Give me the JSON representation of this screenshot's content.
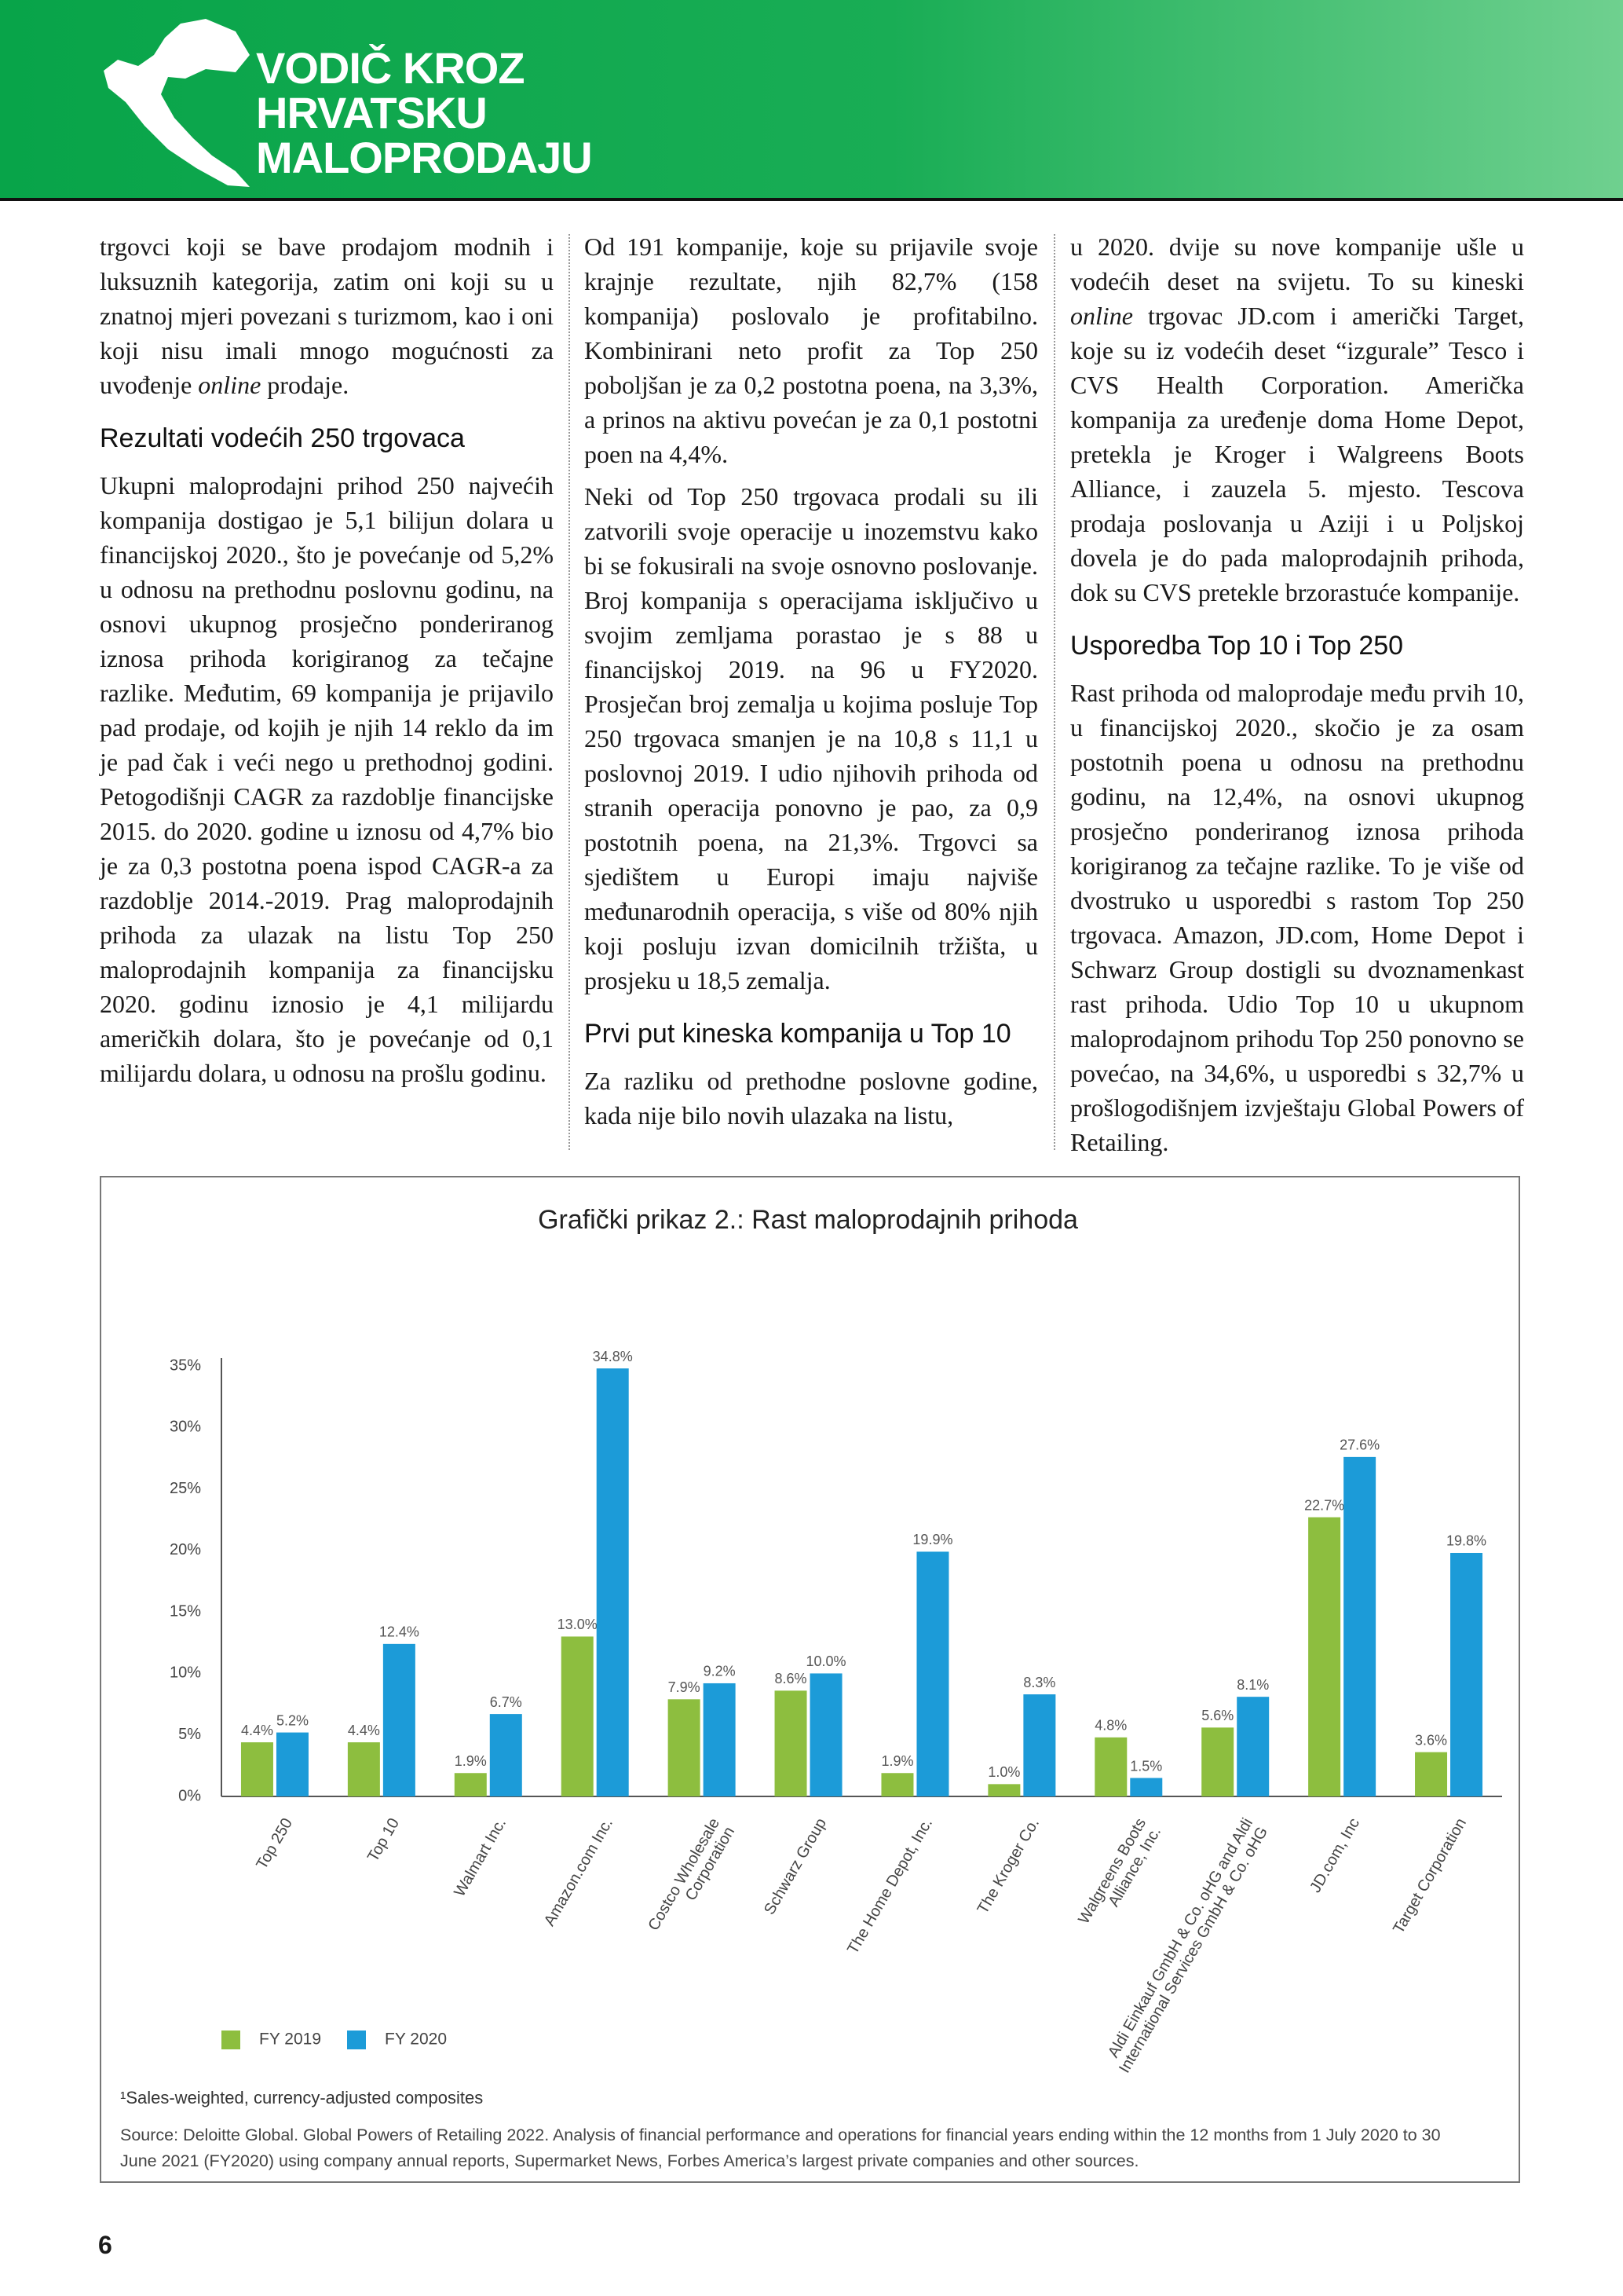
{
  "header": {
    "title": [
      "VODIČ KROZ",
      "HRVATSKU",
      "MALOPRODAJU"
    ]
  },
  "columns": [
    [
      {
        "parts": [
          "trgovci koji se bave prodajom modnih i luksuznih kategorija, zatim oni koji su u znatnoj mjeri povezani s turizmom, kao i oni koji nisu imali mnogo mogućnosti za uvođenje ",
          "online",
          " prodaje."
        ],
        "italic": [
          1
        ]
      },
      {
        "heading": "Rezultati vodećih 250 trgovaca"
      },
      {
        "parts": [
          "Ukupni maloprodajni prihod 250 najvećih kompanija dostigao je 5,1 bilijun dolara u financijskoj 2020., što je povećanje od 5,2% u odnosu na prethodnu poslovnu godinu, na osnovi ukupnog prosječno ponderiranog iznosa prihoda korigiranog za tečajne razlike. Međutim, 69 kompanija je prijavilo pad prodaje, od kojih je njih 14 reklo da im je pad čak i veći nego u prethodnoj godini. Petogodišnji CAGR za razdoblje financijske 2015. do 2020. godine u iznosu od 4,7% bio je za 0,3 postotna poena ispod CAGR-a za razdoblje 2014.-2019. Prag maloprodajnih prihoda za ulazak na listu Top 250 maloprodajnih kompanija za financijsku 2020. godinu iznosio je 4,1 milijardu američkih dolara, što je povećanje od 0,1 milijardu dolara, u odnosu na prošlu godinu."
        ]
      }
    ],
    [
      {
        "parts": [
          "Od 191 kompanije, koje su prijavile svoje krajnje rezultate, njih 82,7% (158 kompanija) poslovalo je profitabilno. Kombinirani neto profit za Top 250 poboljšan je za 0,2 postotna poena, na 3,3%, a prinos na aktivu povećan je za 0,1 postotni poen na 4,4%."
        ]
      },
      {
        "parts": [
          "Neki od Top 250 trgovaca prodali su ili zatvorili svoje operacije u inozemstvu kako bi se fokusirali na svoje osnovno poslovanje. Broj kompanija s operacijama isključivo u svojim zemljama porastao je s 88 u financijskoj 2019. na 96 u FY2020. Prosječan broj zemalja u kojima posluje Top 250 trgovaca smanjen je na 10,8 s 11,1 u poslovnoj 2019. I udio njihovih prihoda od stranih operacija ponovno je pao, za 0,9 postotnih poena, na 21,3%. Trgovci sa sjedištem u Europi imaju najviše međunarodnih operacija, s više od 80% njih koji posluju izvan domicilnih tržišta, u prosjeku u 18,5 zemalja."
        ]
      },
      {
        "heading": "Prvi put kineska kompanija u Top 10"
      },
      {
        "parts": [
          "Za razliku od prethodne poslovne godine, kada nije bilo novih ulazaka na listu,"
        ]
      }
    ],
    [
      {
        "parts": [
          "u 2020. dvije su nove kompanije ušle u vodećih deset na svijetu. To su kineski ",
          "online",
          " trgovac JD.com i američki Target, koje su iz vodećih deset “izgurale” Tesco i CVS Health Corporation. Američka kompanija za uređenje doma Home Depot, pretekla je Kroger i Walgreens Boots Alliance, i zauzela 5. mjesto. Tescova prodaja poslovanja u Aziji i u Poljskoj dovela je do pada maloprodajnih prihoda, dok su CVS pretekle brzorastuće kompanije."
        ],
        "italic": [
          1
        ]
      },
      {
        "heading": "Usporedba Top 10 i Top 250"
      },
      {
        "parts": [
          "Rast prihoda od maloprodaje među prvih 10, u financijskoj 2020., skočio je za osam postotnih poena u odnosu na prethodnu godinu, na 12,4%, na osnovi ukupnog prosječno ponderiranog iznosa prihoda korigiranog za tečajne razlike. To je više od dvostruko u usporedbi s rastom Top 250 trgovaca. Amazon, JD.com, Home Depot i Schwarz Group dostigli su dvoznamenkast rast prihoda. Udio Top 10 u ukupnom maloprodajnom prihodu Top 250 ponovno se povećao, na 34,6%, u usporedbi s 32,7% u prošlogodišnjem izvještaju Global Powers of Retailing."
        ]
      }
    ]
  ],
  "chart_data": {
    "type": "bar",
    "title": "Grafički prikaz 2.: Rast maloprodajnih prihoda",
    "categories": [
      "Top 250",
      "Top 10",
      "Walmart Inc.",
      "Amazon.com Inc.",
      "Costco Wholesale\nCorporation",
      "Schwarz Group",
      "The Home Depot, Inc.",
      "The Kroger Co.",
      "Walgreens Boots\nAlliance, Inc.",
      "Aldi Einkauf GmbH & Co. oHG and Aldi\nInternational Services GmbH & Co. oHG",
      "JD.com, Inc",
      "Target Corporation"
    ],
    "series": [
      {
        "name": "FY 2019",
        "color": "#8dbe3f",
        "values": [
          4.4,
          4.4,
          1.9,
          13.0,
          7.9,
          8.6,
          1.9,
          1.0,
          4.8,
          5.6,
          22.7,
          3.6
        ],
        "value_labels": [
          "4.4%",
          "4.4%",
          "1.9%",
          "13.0%",
          "7.9%",
          "8.6%",
          "1.9%",
          "1.0%",
          "4.8%",
          "5.6%",
          "22.7%",
          "3.6%"
        ]
      },
      {
        "name": "FY 2020",
        "color": "#1c9bd8",
        "values": [
          5.2,
          12.4,
          6.7,
          34.8,
          9.2,
          10.0,
          19.9,
          8.3,
          1.5,
          8.1,
          27.6,
          19.8
        ],
        "value_labels": [
          "5.2%",
          "12.4%",
          "6.7%",
          "34.8%",
          "9.2%",
          "10.0%",
          "19.9%",
          "8.3%",
          "1.5%",
          "8.1%",
          "27.6%",
          "19.8%"
        ]
      }
    ],
    "ylim": [
      0,
      35
    ],
    "yticks": [
      {
        "value": 0,
        "label": "0%"
      },
      {
        "value": 5,
        "label": "5%"
      },
      {
        "value": 10,
        "label": "10%"
      },
      {
        "value": 15,
        "label": "15%"
      },
      {
        "value": 20,
        "label": "20%"
      },
      {
        "value": 25,
        "label": "25%"
      },
      {
        "value": 30,
        "label": "30%"
      },
      {
        "value": 35,
        "label": "35%"
      }
    ],
    "grid": false,
    "legend": "bottom-left",
    "footnote": "¹Sales-weighted, currency-adjusted composites",
    "source": "Source: Deloitte Global. Global Powers of Retailing 2022. Analysis of financial performance and operations for financial years ending within the 12 months from 1 July 2020 to 30 June 2021 (FY2020) using company annual reports, Supermarket News, Forbes America’s largest private companies and other sources."
  },
  "page_number": "6"
}
